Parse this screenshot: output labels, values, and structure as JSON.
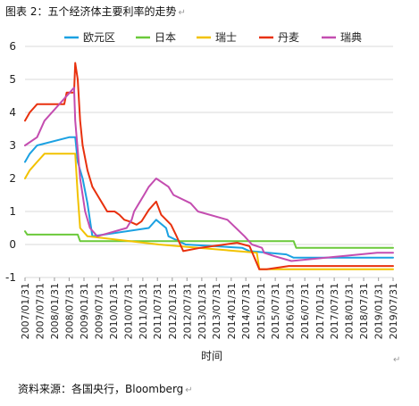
{
  "figure": {
    "caption": "图表 2：五个经济体主要利率的走势",
    "source": "资料来源：各国央行，Bloomberg",
    "return_mark": "↵"
  },
  "chart_data": {
    "type": "line",
    "title": "",
    "xlabel": "时间",
    "ylabel": "",
    "ylim": [
      -1,
      6
    ],
    "yticks": [
      -1,
      0,
      1,
      2,
      3,
      4,
      5,
      6
    ],
    "grid": true,
    "legend_position": "top",
    "x_ticks": [
      "2007/01/31",
      "2007/07/31",
      "2008/01/31",
      "2008/07/31",
      "2009/01/31",
      "2009/07/31",
      "2010/01/31",
      "2010/07/31",
      "2011/01/31",
      "2011/07/31",
      "2012/01/31",
      "2012/07/31",
      "2013/01/31",
      "2013/07/31",
      "2014/01/31",
      "2014/07/31",
      "2015/01/31",
      "2015/07/31",
      "2016/01/31",
      "2016/07/31",
      "2017/01/31",
      "2017/07/31",
      "2018/01/31",
      "2018/07/31",
      "2019/01/31",
      "2019/07/31"
    ],
    "series": [
      {
        "name": "欧元区",
        "color": "#1BA1E2",
        "points": [
          [
            "2007/01/31",
            2.5
          ],
          [
            "2007/03/31",
            2.75
          ],
          [
            "2007/06/30",
            3.0
          ],
          [
            "2008/07/31",
            3.25
          ],
          [
            "2008/10/15",
            3.25
          ],
          [
            "2008/11/15",
            2.5
          ],
          [
            "2009/01/15",
            2.0
          ],
          [
            "2009/03/15",
            1.25
          ],
          [
            "2009/05/15",
            0.25
          ],
          [
            "2011/04/15",
            0.5
          ],
          [
            "2011/07/15",
            0.75
          ],
          [
            "2011/11/15",
            0.5
          ],
          [
            "2011/12/15",
            0.25
          ],
          [
            "2012/07/15",
            0.0
          ],
          [
            "2014/06/15",
            -0.1
          ],
          [
            "2014/09/15",
            -0.2
          ],
          [
            "2015/12/15",
            -0.3
          ],
          [
            "2016/03/15",
            -0.4
          ],
          [
            "2019/07/31",
            -0.4
          ]
        ]
      },
      {
        "name": "日本",
        "color": "#6BC93A",
        "points": [
          [
            "2007/01/31",
            0.4
          ],
          [
            "2007/02/28",
            0.3
          ],
          [
            "2008/11/15",
            0.3
          ],
          [
            "2008/12/15",
            0.1
          ],
          [
            "2016/03/15",
            0.1
          ],
          [
            "2016/04/15",
            -0.1
          ],
          [
            "2019/07/31",
            -0.1
          ]
        ]
      },
      {
        "name": "瑞士",
        "color": "#F2C200",
        "points": [
          [
            "2007/01/31",
            2.0
          ],
          [
            "2007/03/31",
            2.25
          ],
          [
            "2007/06/30",
            2.5
          ],
          [
            "2007/09/30",
            2.75
          ],
          [
            "2008/10/15",
            2.75
          ],
          [
            "2008/11/15",
            1.5
          ],
          [
            "2008/12/15",
            0.5
          ],
          [
            "2009/03/15",
            0.25
          ],
          [
            "2011/08/15",
            0.0
          ],
          [
            "2014/12/15",
            -0.25
          ],
          [
            "2015/01/15",
            -0.75
          ],
          [
            "2019/07/31",
            -0.75
          ]
        ]
      },
      {
        "name": "丹麦",
        "color": "#E8310E",
        "points": [
          [
            "2007/01/31",
            3.75
          ],
          [
            "2007/03/31",
            4.0
          ],
          [
            "2007/06/30",
            4.25
          ],
          [
            "2008/05/31",
            4.25
          ],
          [
            "2008/06/30",
            4.6
          ],
          [
            "2008/09/30",
            4.6
          ],
          [
            "2008/10/15",
            5.5
          ],
          [
            "2008/11/15",
            5.0
          ],
          [
            "2008/12/15",
            3.75
          ],
          [
            "2009/01/15",
            3.0
          ],
          [
            "2009/03/15",
            2.25
          ],
          [
            "2009/05/15",
            1.75
          ],
          [
            "2009/07/15",
            1.5
          ],
          [
            "2009/09/15",
            1.25
          ],
          [
            "2009/11/15",
            1.0
          ],
          [
            "2010/02/15",
            1.0
          ],
          [
            "2010/04/15",
            0.9
          ],
          [
            "2010/06/15",
            0.75
          ],
          [
            "2010/08/15",
            0.7
          ],
          [
            "2010/11/15",
            0.6
          ],
          [
            "2011/01/15",
            0.7
          ],
          [
            "2011/04/15",
            1.05
          ],
          [
            "2011/07/15",
            1.3
          ],
          [
            "2011/09/15",
            0.9
          ],
          [
            "2012/01/15",
            0.6
          ],
          [
            "2012/03/15",
            0.3
          ],
          [
            "2012/06/15",
            -0.2
          ],
          [
            "2013/01/15",
            -0.1
          ],
          [
            "2014/04/15",
            0.05
          ],
          [
            "2014/09/15",
            -0.05
          ],
          [
            "2015/01/15",
            -0.75
          ],
          [
            "2015/04/15",
            -0.75
          ],
          [
            "2016/01/15",
            -0.65
          ],
          [
            "2019/07/31",
            -0.65
          ]
        ]
      },
      {
        "name": "瑞典",
        "color": "#C44DB0",
        "points": [
          [
            "2007/01/31",
            3.0
          ],
          [
            "2007/06/30",
            3.25
          ],
          [
            "2007/09/30",
            3.75
          ],
          [
            "2008/09/30",
            4.75
          ],
          [
            "2008/10/15",
            3.75
          ],
          [
            "2008/12/15",
            2.0
          ],
          [
            "2009/02/15",
            1.0
          ],
          [
            "2009/04/15",
            0.5
          ],
          [
            "2009/07/15",
            0.25
          ],
          [
            "2010/07/15",
            0.5
          ],
          [
            "2010/09/15",
            0.75
          ],
          [
            "2010/10/15",
            1.0
          ],
          [
            "2010/12/15",
            1.25
          ],
          [
            "2011/02/15",
            1.5
          ],
          [
            "2011/04/15",
            1.75
          ],
          [
            "2011/07/15",
            2.0
          ],
          [
            "2011/12/15",
            1.75
          ],
          [
            "2012/02/15",
            1.5
          ],
          [
            "2012/09/15",
            1.25
          ],
          [
            "2012/12/15",
            1.0
          ],
          [
            "2013/12/15",
            0.75
          ],
          [
            "2014/07/15",
            0.25
          ],
          [
            "2014/10/15",
            0.0
          ],
          [
            "2015/02/15",
            -0.1
          ],
          [
            "2015/03/15",
            -0.25
          ],
          [
            "2015/07/15",
            -0.35
          ],
          [
            "2016/02/15",
            -0.5
          ],
          [
            "2019/01/15",
            -0.25
          ],
          [
            "2019/07/31",
            -0.25
          ]
        ]
      }
    ]
  }
}
